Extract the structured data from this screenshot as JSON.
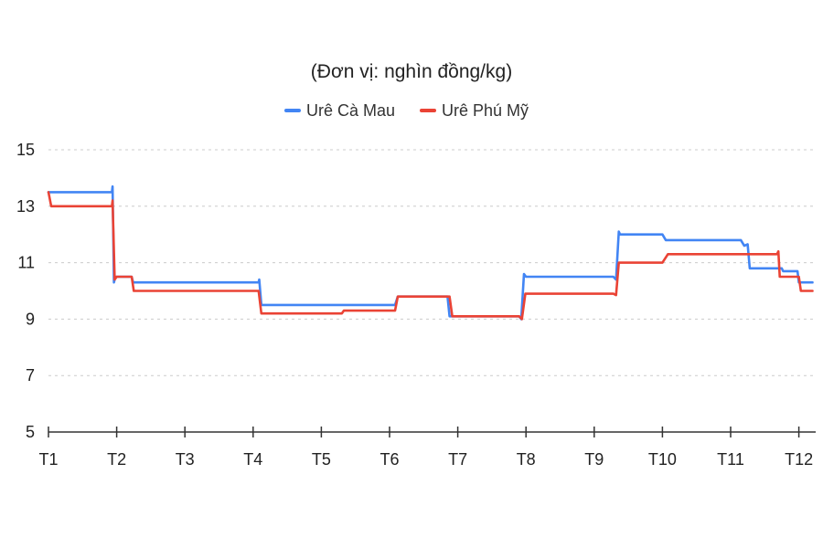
{
  "chart_data": {
    "type": "line",
    "title": "",
    "subtitle": "(Đơn vị: nghìn đồng/kg)",
    "xlabel": "",
    "ylabel": "",
    "categories": [
      "T1",
      "T2",
      "T3",
      "T4",
      "T5",
      "T6",
      "T7",
      "T8",
      "T9",
      "T10",
      "T11",
      "T12"
    ],
    "ylim": [
      5,
      15
    ],
    "yticks": [
      5,
      7,
      9,
      11,
      13,
      15
    ],
    "grid": true,
    "legend_position": "top-center",
    "series": [
      {
        "name": "Urê Cà Mau",
        "color": "#4285f4",
        "points": [
          [
            1.0,
            13.5
          ],
          [
            1.93,
            13.5
          ],
          [
            1.94,
            13.7
          ],
          [
            1.96,
            10.3
          ],
          [
            1.98,
            10.5
          ],
          [
            2.22,
            10.5
          ],
          [
            2.24,
            10.3
          ],
          [
            4.08,
            10.3
          ],
          [
            4.09,
            10.4
          ],
          [
            4.12,
            9.5
          ],
          [
            6.08,
            9.5
          ],
          [
            6.12,
            9.8
          ],
          [
            6.85,
            9.8
          ],
          [
            6.88,
            9.1
          ],
          [
            7.9,
            9.1
          ],
          [
            7.93,
            9.0
          ],
          [
            7.97,
            10.6
          ],
          [
            8.0,
            10.5
          ],
          [
            9.28,
            10.5
          ],
          [
            9.32,
            10.4
          ],
          [
            9.36,
            12.1
          ],
          [
            9.38,
            12.0
          ],
          [
            10.0,
            12.0
          ],
          [
            10.05,
            11.8
          ],
          [
            11.15,
            11.8
          ],
          [
            11.2,
            11.6
          ],
          [
            11.25,
            11.65
          ],
          [
            11.28,
            10.8
          ],
          [
            11.75,
            10.8
          ],
          [
            11.77,
            10.7
          ],
          [
            11.98,
            10.7
          ],
          [
            12.0,
            10.3
          ],
          [
            12.2,
            10.3
          ]
        ]
      },
      {
        "name": "Urê Phú Mỹ",
        "color": "#ea4335",
        "points": [
          [
            1.0,
            13.5
          ],
          [
            1.04,
            13.0
          ],
          [
            1.93,
            13.0
          ],
          [
            1.94,
            13.2
          ],
          [
            1.97,
            10.4
          ],
          [
            2.0,
            10.5
          ],
          [
            2.22,
            10.5
          ],
          [
            2.25,
            10.0
          ],
          [
            4.08,
            10.0
          ],
          [
            4.12,
            9.2
          ],
          [
            5.3,
            9.2
          ],
          [
            5.33,
            9.3
          ],
          [
            6.08,
            9.3
          ],
          [
            6.12,
            9.8
          ],
          [
            6.88,
            9.8
          ],
          [
            6.92,
            9.1
          ],
          [
            7.9,
            9.1
          ],
          [
            7.94,
            9.0
          ],
          [
            7.99,
            9.9
          ],
          [
            9.28,
            9.9
          ],
          [
            9.32,
            9.85
          ],
          [
            9.36,
            11.0
          ],
          [
            10.0,
            11.0
          ],
          [
            10.08,
            11.3
          ],
          [
            11.68,
            11.3
          ],
          [
            11.7,
            11.4
          ],
          [
            11.72,
            10.5
          ],
          [
            12.0,
            10.5
          ],
          [
            12.03,
            10.0
          ],
          [
            12.2,
            10.0
          ]
        ]
      }
    ]
  }
}
